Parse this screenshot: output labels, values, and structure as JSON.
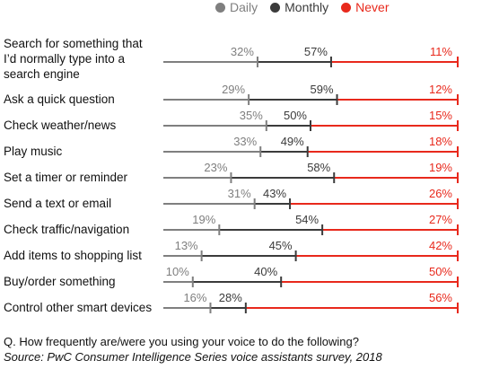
{
  "legend": [
    {
      "label": "Daily",
      "color": "#7f7f7f"
    },
    {
      "label": "Monthly",
      "color": "#3b3b3b"
    },
    {
      "label": "Never",
      "color": "#e8291c"
    }
  ],
  "chart_data": {
    "type": "bar",
    "subtype": "cumulative-dot-line",
    "categories": [
      "Search for something that I’d normally type into a search engine",
      "Ask a quick question",
      "Check weather/news",
      "Play music",
      "Set a timer or reminder",
      "Send a text or email",
      "Check traffic/navigation",
      "Add items to shopping list",
      "Buy/order something",
      "Control other smart devices"
    ],
    "series": [
      {
        "name": "Daily",
        "values": [
          32,
          29,
          35,
          33,
          23,
          31,
          19,
          13,
          10,
          16
        ]
      },
      {
        "name": "Monthly",
        "values": [
          57,
          59,
          50,
          49,
          58,
          43,
          54,
          45,
          40,
          28
        ]
      },
      {
        "name": "Never",
        "values": [
          11,
          12,
          15,
          18,
          19,
          26,
          27,
          42,
          50,
          56
        ]
      }
    ],
    "value_labels": [
      [
        "32%",
        "57%",
        "11%"
      ],
      [
        "29%",
        "59%",
        "12%"
      ],
      [
        "35%",
        "50%",
        "15%"
      ],
      [
        "33%",
        "49%",
        "18%"
      ],
      [
        "23%",
        "58%",
        "19%"
      ],
      [
        "31%",
        "43%",
        "26%"
      ],
      [
        "19%",
        "54%",
        "27%"
      ],
      [
        "13%",
        "45%",
        "42%"
      ],
      [
        "10%",
        "40%",
        "50%"
      ],
      [
        "16%",
        "28%",
        "56%"
      ]
    ],
    "xlim": [
      0,
      100
    ],
    "legend_position": "top",
    "grid": false
  },
  "footer": {
    "question": "Q. How frequently are/were you using your voice to do the following?",
    "source": "Source: PwC Consumer Intelligence Series voice assistants survey, 2018"
  }
}
